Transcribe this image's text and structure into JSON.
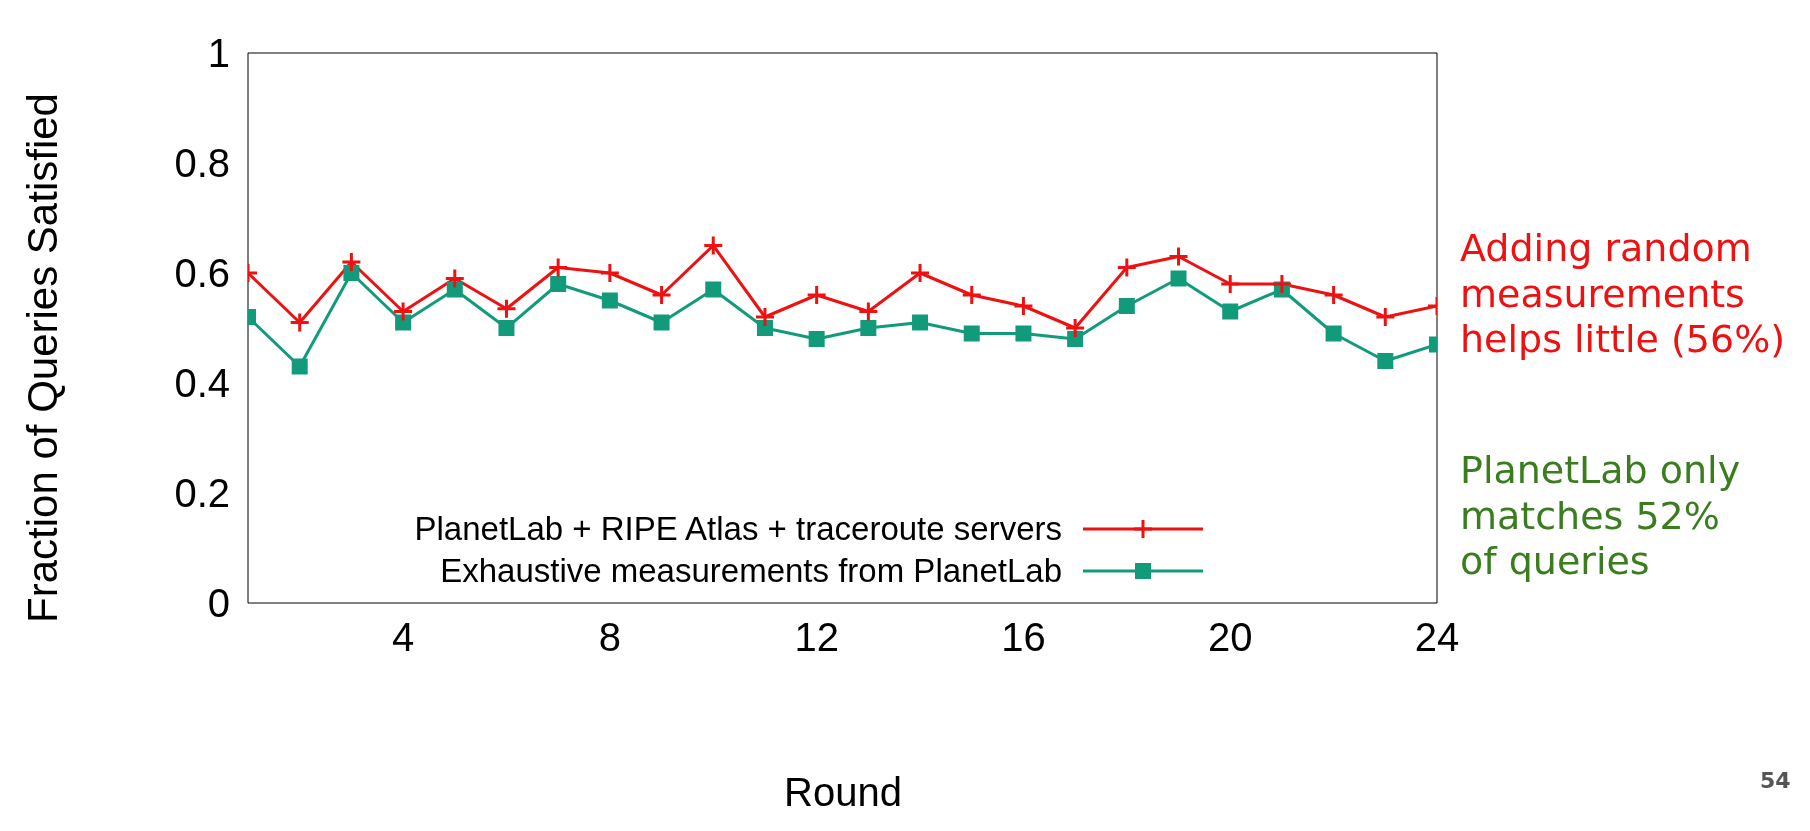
{
  "chart_data": {
    "type": "line",
    "xlabel": "Round",
    "ylabel": "Fraction of Queries Satisfied",
    "x": [
      1,
      2,
      3,
      4,
      5,
      6,
      7,
      8,
      9,
      10,
      11,
      12,
      13,
      14,
      15,
      16,
      17,
      18,
      19,
      20,
      21,
      22,
      23,
      24
    ],
    "series": [
      {
        "name": "PlanetLab + RIPE Atlas + traceroute servers",
        "color": "#ee1111",
        "marker": "cross",
        "values": [
          0.6,
          0.51,
          0.62,
          0.53,
          0.59,
          0.535,
          0.61,
          0.6,
          0.56,
          0.65,
          0.52,
          0.56,
          0.53,
          0.6,
          0.56,
          0.54,
          0.5,
          0.61,
          0.63,
          0.58,
          0.58,
          0.56,
          0.52,
          0.54
        ]
      },
      {
        "name": "Exhaustive measurements from PlanetLab",
        "color": "#129b7b",
        "marker": "square",
        "values": [
          0.52,
          0.43,
          0.6,
          0.51,
          0.57,
          0.5,
          0.58,
          0.55,
          0.51,
          0.57,
          0.5,
          0.48,
          0.5,
          0.51,
          0.49,
          0.49,
          0.48,
          0.54,
          0.59,
          0.53,
          0.57,
          0.49,
          0.44,
          0.47
        ]
      }
    ],
    "xlim": [
      1,
      24
    ],
    "xticks": [
      4,
      8,
      12,
      16,
      20,
      24
    ],
    "ylim": [
      0,
      1
    ],
    "yticks": [
      0,
      0.2,
      0.4,
      0.6,
      0.8,
      1
    ],
    "grid": false,
    "legend": "bottom",
    "line_style": "solid",
    "annotations": [
      "Adding random\nmeasurements\nhelps little (56%)",
      "PlanetLab only\nmatches 52%\nof queries",
      "54"
    ]
  }
}
